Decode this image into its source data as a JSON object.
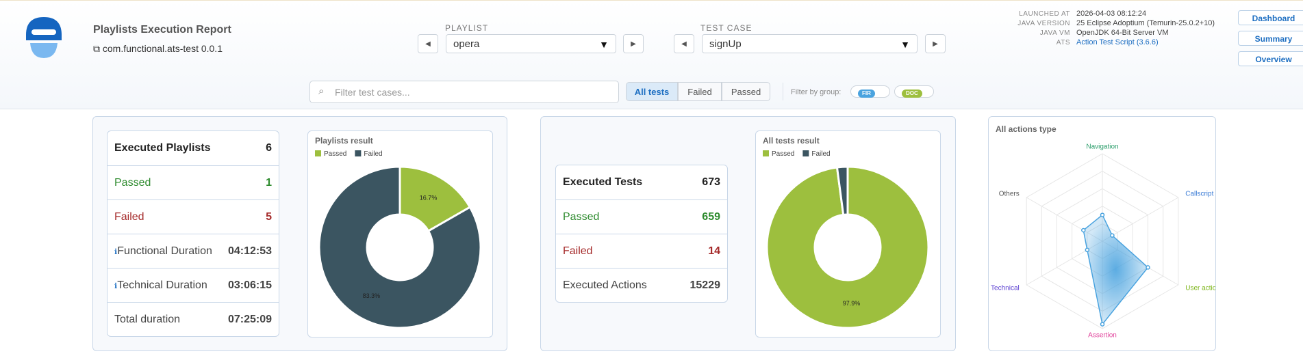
{
  "header": {
    "title": "Playlists Execution Report",
    "project": "com.functional.ats-test 0.0.1",
    "playlist_label": "PLAYLIST",
    "playlist_value": "opera",
    "testcase_label": "TEST CASE",
    "testcase_value": "signUp",
    "info": [
      {
        "label": "LAUNCHED AT",
        "value": "2026-04-03 08:12:24"
      },
      {
        "label": "JAVA VERSION",
        "value": "25 Eclipse Adoptium (Temurin-25.0.2+10)"
      },
      {
        "label": "JAVA VM",
        "value": "OpenJDK 64-Bit Server VM"
      },
      {
        "label": "ATS",
        "value": "Action Test Script (3.6.6)"
      }
    ],
    "nav": [
      "Dashboard",
      "Summary",
      "Overview"
    ]
  },
  "filters": {
    "search_placeholder": "Filter test cases...",
    "tabs": [
      "All tests",
      "Failed",
      "Passed"
    ],
    "group_label": "Filter by group:",
    "groups": [
      "FIR",
      "DOC"
    ]
  },
  "playlists_table": {
    "rows": [
      [
        "Executed Playlists",
        6
      ],
      [
        "Passed",
        1
      ],
      [
        "Failed",
        5
      ],
      [
        "Functional Duration",
        "04:12:53"
      ],
      [
        "Technical Duration",
        "03:06:15"
      ],
      [
        "Total duration",
        "07:25:09"
      ]
    ]
  },
  "tests_table": {
    "rows": [
      [
        "Executed Tests",
        673
      ],
      [
        "Passed",
        659
      ],
      [
        "Failed",
        14
      ],
      [
        "Executed Actions",
        15229
      ]
    ]
  },
  "chart_data": [
    {
      "type": "pie",
      "title": "Playlists result",
      "categories": [
        "Passed",
        "Failed"
      ],
      "values": [
        16.7,
        83.3
      ],
      "value_labels": [
        "16.7%",
        "83.3%"
      ],
      "colors": [
        "#9dbf3e",
        "#3b5561"
      ]
    },
    {
      "type": "pie",
      "title": "All tests result",
      "categories": [
        "Passed",
        "Failed"
      ],
      "values": [
        97.9,
        2.1
      ],
      "value_labels": [
        "97.9%",
        null
      ],
      "colors": [
        "#9dbf3e",
        "#3b5561"
      ]
    },
    {
      "type": "radar",
      "title": "All actions type",
      "categories": [
        "Navigation",
        "Callscript",
        "User action",
        "Assertion",
        "Technical",
        "Others"
      ],
      "label_colors": [
        "#2a9d6a",
        "#3a7bd5",
        "#7cb518",
        "#e0409a",
        "#5b3fd1",
        "#555555"
      ],
      "values": [
        30,
        13,
        60,
        95,
        20,
        25
      ],
      "rlim": [
        0,
        100
      ],
      "color": "#4aa3df"
    }
  ]
}
